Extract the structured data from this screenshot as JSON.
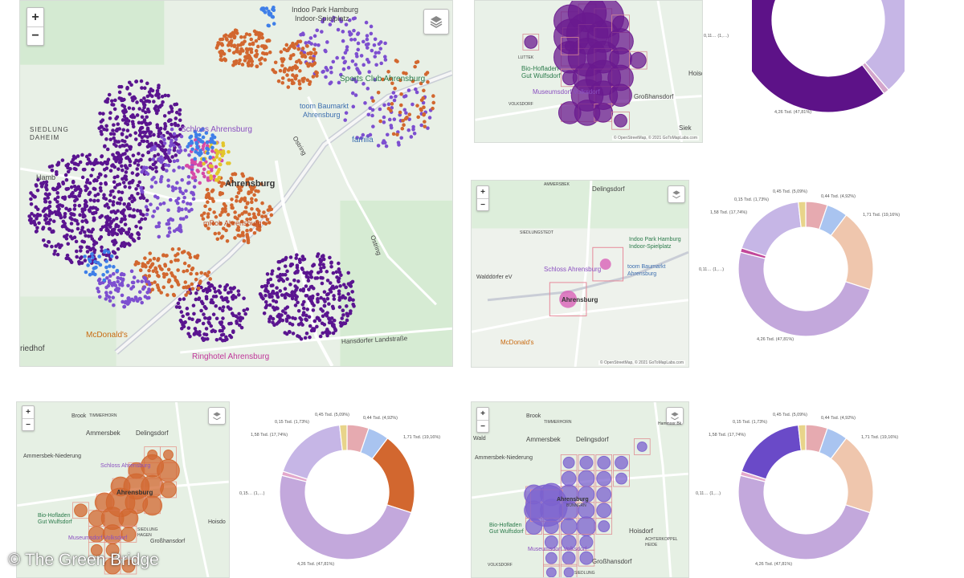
{
  "colors": {
    "purple": "#5a1490",
    "violet": "#7d4fd0",
    "blue": "#3f7fe8",
    "orange": "#d2672f",
    "pink": "#d64aa8",
    "yellow": "#e3c52a",
    "lavender": "#c6b6e6",
    "peach": "#efc6ad",
    "deep": "#5d1288",
    "salmon": "#e6aab0",
    "lightblue": "#a9c4f0",
    "sky": "#7ea8ee",
    "orangeseg": "#d2672f",
    "indigo": "#6a4ac8",
    "lilac": "#c3a8dc"
  },
  "maps": {
    "main": {
      "zoom_in": "+",
      "zoom_out": "−",
      "layers_icon": "layers-icon",
      "labels": {
        "indoo": "Indoo Park Hamburg",
        "spielplatz": "Indoor-Spielplatz",
        "sports": "Sports Club Ahrensburg",
        "baumarkt": "toom Baumarkt",
        "ahrensburg1": "Ahrensburg",
        "schloss": "Schloss Ahrensburg",
        "famila": "famila",
        "siedlung": "SIEDLUNG",
        "daheim": "DAHEIM",
        "hamb": "Hamb",
        "ahrensburg2": "Ahrensburg",
        "mcdonalds": "McDonald's",
        "ringhotel": "Ringhotel Ahrensburg",
        "hansdorfer": "Hansdorfer Landstraße",
        "ostring1": "Ostring",
        "ostring2": "Ostring",
        "friedhof": "riedhof",
        "rob": "mRob Ahrensburg"
      }
    },
    "tr": {
      "labels": {
        "bio": "Bio-Hofladen",
        "gut": "Gut Wulfsdorf",
        "museum": "Museumsdorf Volksdorf",
        "gross": "Großhansdorf",
        "hois": "Hoisd",
        "siek": "Siek",
        "luttek": "LUTTEK",
        "volksdorf": "VOLKSDORF"
      },
      "attr": "© OpenStreetMap, © 2021 GoToMapLabs.com"
    },
    "mr": {
      "zoom_in": "+",
      "zoom_out": "−",
      "labels": {
        "ammersbek": "AMMERSBEK",
        "delingsdorf": "Delingsdorf",
        "indoo": "Indoo Park Hamburg",
        "spielplatz": "Indoor-Spielplatz",
        "schloss": "Schloss Ahrensburg",
        "baumarkt": "toom Baumarkt",
        "ahrensburg_b": "Ahrensburg",
        "ahrensburg": "Ahrensburg",
        "walddorfer": "Walddörfer eV",
        "mcdonalds": "McDonald's",
        "siedlung": "SIEDLUNGSTEDT"
      },
      "attr": "© OpenStreetMap, © 2021 GoToMapLabs.com"
    },
    "bl": {
      "zoom_in": "+",
      "zoom_out": "−",
      "labels": {
        "ammersbek": "Ammersbek",
        "delingsdorf": "Delingsdorf",
        "brook": "Brook",
        "timmerhorn": "TIMMERHORN",
        "niederung": "Ammersbek-Niederung",
        "schloss": "Schloss Ahrensburg",
        "ahrensburg": "Ahrensburg",
        "bio": "Bio-Hofladen",
        "gut": "Gut Wulfsdorf",
        "museum": "Museumsdorf Volksdorf",
        "gross": "Großhansdorf",
        "hois": "Hoisdo",
        "siedlung": "SIEDLUNG",
        "hagen": "HAGEN"
      }
    },
    "br": {
      "zoom_in": "+",
      "zoom_out": "−",
      "labels": {
        "ammersbek": "Ammersbek",
        "delingsdorf": "Delingsdorf",
        "brook": "Brook",
        "timmerhorn": "TIMMERHORN",
        "niederung": "Ammersbek-Niederung",
        "wald": "Wald",
        "bio": "Bio-Hofladen",
        "gut": "Gut Wulfsdorf",
        "museum": "Museumsdorf Volksdorf",
        "ahrensburg": "Ahrensburg",
        "gross": "Großhansdorf",
        "hoisdorf": "Hoisdorf",
        "bunnern": "BÜNNERN",
        "achterkoppel": "ACHTERKOPPEL",
        "heide": "HEIDE",
        "volksdorf": "VOLKSDORF",
        "siedlung": "SIEDLUNG",
        "hammoor": "Hammoor Bk"
      }
    }
  },
  "chart_data": [
    {
      "type": "pie",
      "labels": [
        "",
        "0,11… (1,…)",
        "4,26 Tsd. (47,81%)",
        ""
      ],
      "values": [
        18.5,
        0.8,
        47.81,
        12
      ],
      "colors": [
        "#c6b6e6",
        "#d4a5cc",
        "#5d1288",
        "#efc6ad"
      ]
    },
    {
      "type": "pie",
      "labels": [
        "0,45 Tsd. (5,09%)",
        "0,44 Tsd. (4,92%)",
        "1,71 Tsd. (19,16%)",
        "4,26 Tsd. (47,81%)",
        "0,11… (1,…)",
        "1,58 Tsd. (17,74%)",
        "0,15 Tsd. (1,73%)"
      ],
      "values": [
        5.09,
        4.92,
        19.16,
        47.81,
        1.0,
        17.74,
        1.73
      ],
      "colors": [
        "#e6aab0",
        "#a9c4f0",
        "#efc6ad",
        "#c3a8dc",
        "#c2489a",
        "#c6b6e6",
        "#e8d48a"
      ]
    },
    {
      "type": "pie",
      "labels": [
        "0,45 Tsd. (5,09%)",
        "0,44 Tsd. (4,92%)",
        "1,71 Tsd. (19,16%)",
        "4,26 Tsd. (47,81%)",
        "0,15… (1,…)",
        "1,58 Tsd. (17,74%)",
        "0,15 Tsd. (1,73%)"
      ],
      "values": [
        5.09,
        4.92,
        19.16,
        47.81,
        1.0,
        17.74,
        1.73
      ],
      "colors": [
        "#e6aab0",
        "#a9c4f0",
        "#d2672f",
        "#c3a8dc",
        "#e3a8cc",
        "#c6b6e6",
        "#e8d48a"
      ]
    },
    {
      "type": "pie",
      "labels": [
        "0,45 Tsd. (5,09%)",
        "0,44 Tsd. (4,92%)",
        "1,71 Tsd. (19,16%)",
        "4,26 Tsd. (47,81%)",
        "0,11… (1,…)",
        "1,58 Tsd. (17,74%)",
        "0,15 Tsd. (1,73%)"
      ],
      "values": [
        5.09,
        4.92,
        19.16,
        47.81,
        1.0,
        17.74,
        1.73
      ],
      "colors": [
        "#e6aab0",
        "#a9c4f0",
        "#efc6ad",
        "#c3a8dc",
        "#e3a8cc",
        "#6a4ac8",
        "#e8d48a"
      ]
    }
  ],
  "watermark": "© The Green Bridge"
}
